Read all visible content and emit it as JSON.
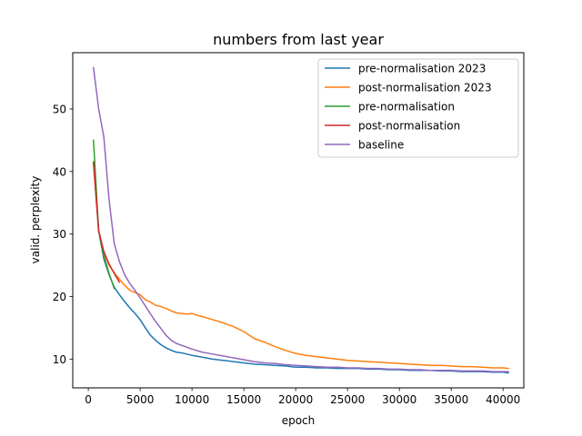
{
  "chart_data": {
    "type": "line",
    "title": "numbers from last year",
    "xlabel": "epoch",
    "ylabel": "valid. perplexity",
    "xlim": [
      -1500,
      42000
    ],
    "ylim": [
      5.4,
      59.0
    ],
    "xticks": [
      0,
      5000,
      10000,
      15000,
      20000,
      25000,
      30000,
      35000,
      40000
    ],
    "yticks": [
      10,
      20,
      30,
      40,
      50
    ],
    "grid": false,
    "legend_position": "top-right",
    "series": [
      {
        "name": "pre-normalisation 2023",
        "color": "#1f77b4",
        "x": [
          500,
          1000,
          1500,
          2000,
          2500,
          3000,
          3500,
          4000,
          4500,
          5000,
          5500,
          6000,
          6500,
          7000,
          7500,
          8000,
          8500,
          9000,
          9500,
          10000,
          11000,
          12000,
          13000,
          14000,
          15000,
          16000,
          17000,
          18000,
          19000,
          20000,
          21000,
          22000,
          23000,
          24000,
          25000,
          26000,
          27000,
          28000,
          29000,
          30000,
          31000,
          32000,
          33000,
          34000,
          35000,
          36000,
          37000,
          38000,
          39000,
          40000,
          40500
        ],
        "y": [
          41.5,
          30.5,
          26.0,
          23.5,
          21.5,
          20.3,
          19.2,
          18.2,
          17.3,
          16.3,
          15.0,
          13.8,
          13.0,
          12.3,
          11.8,
          11.4,
          11.1,
          11.0,
          10.8,
          10.6,
          10.3,
          10.0,
          9.8,
          9.6,
          9.4,
          9.2,
          9.1,
          9.0,
          8.9,
          8.7,
          8.7,
          8.6,
          8.6,
          8.5,
          8.5,
          8.5,
          8.4,
          8.4,
          8.3,
          8.3,
          8.2,
          8.2,
          8.2,
          8.1,
          8.1,
          8.0,
          8.0,
          8.0,
          7.9,
          7.9,
          7.8
        ]
      },
      {
        "name": "post-normalisation 2023",
        "color": "#ff7f0e",
        "x": [
          500,
          1000,
          1500,
          2000,
          2500,
          3000,
          3500,
          4000,
          5000,
          5500,
          6000,
          6500,
          7000,
          7500,
          8000,
          8500,
          9000,
          9500,
          10000,
          10500,
          11000,
          12000,
          13000,
          14000,
          15000,
          16000,
          17000,
          18000,
          19000,
          20000,
          21000,
          22000,
          23000,
          24000,
          25000,
          26000,
          27000,
          28000,
          29000,
          30000,
          31000,
          32000,
          33000,
          34000,
          35000,
          36000,
          37000,
          38000,
          39000,
          40000,
          40500
        ],
        "y": [
          41.5,
          30.5,
          27.0,
          25.0,
          23.8,
          22.8,
          21.8,
          21.0,
          20.3,
          19.5,
          19.1,
          18.6,
          18.4,
          18.1,
          17.7,
          17.4,
          17.3,
          17.2,
          17.3,
          17.0,
          16.8,
          16.3,
          15.8,
          15.2,
          14.4,
          13.3,
          12.7,
          12.0,
          11.4,
          10.9,
          10.6,
          10.4,
          10.2,
          10.0,
          9.8,
          9.7,
          9.6,
          9.5,
          9.4,
          9.3,
          9.2,
          9.1,
          9.0,
          9.0,
          8.9,
          8.8,
          8.8,
          8.7,
          8.6,
          8.6,
          8.5
        ]
      },
      {
        "name": "pre-normalisation",
        "color": "#2ca02c",
        "x": [
          500,
          1000,
          1500,
          2000,
          2500
        ],
        "y": [
          45.0,
          30.5,
          26.5,
          23.7,
          21.3
        ]
      },
      {
        "name": "post-normalisation",
        "color": "#d62728",
        "x": [
          500,
          1000,
          1500,
          2000,
          2500,
          3000
        ],
        "y": [
          41.5,
          30.5,
          27.2,
          25.2,
          23.7,
          22.3
        ]
      },
      {
        "name": "baseline",
        "color": "#9467bd",
        "x": [
          500,
          1000,
          1500,
          2000,
          2500,
          3000,
          3500,
          4000,
          4500,
          5000,
          5500,
          6000,
          6500,
          7000,
          7500,
          8000,
          8500,
          9000,
          9500,
          10000,
          11000,
          12000,
          13000,
          14000,
          15000,
          16000,
          17000,
          18000,
          19000,
          20000,
          21000,
          22000,
          23000,
          24000,
          25000,
          26000,
          27000,
          28000,
          29000,
          30000,
          31000,
          32000,
          33000,
          34000,
          35000,
          36000,
          37000,
          38000,
          39000,
          40000,
          40500
        ],
        "y": [
          56.6,
          50.0,
          45.5,
          35.5,
          28.5,
          25.6,
          23.5,
          22.1,
          21.0,
          19.8,
          18.5,
          17.2,
          16.0,
          14.9,
          13.8,
          13.0,
          12.5,
          12.2,
          11.9,
          11.6,
          11.1,
          10.8,
          10.5,
          10.2,
          9.9,
          9.6,
          9.4,
          9.3,
          9.1,
          9.0,
          8.9,
          8.8,
          8.7,
          8.7,
          8.6,
          8.6,
          8.5,
          8.5,
          8.4,
          8.4,
          8.3,
          8.3,
          8.2,
          8.2,
          8.2,
          8.1,
          8.1,
          8.1,
          8.0,
          8.0,
          8.0
        ]
      }
    ]
  }
}
